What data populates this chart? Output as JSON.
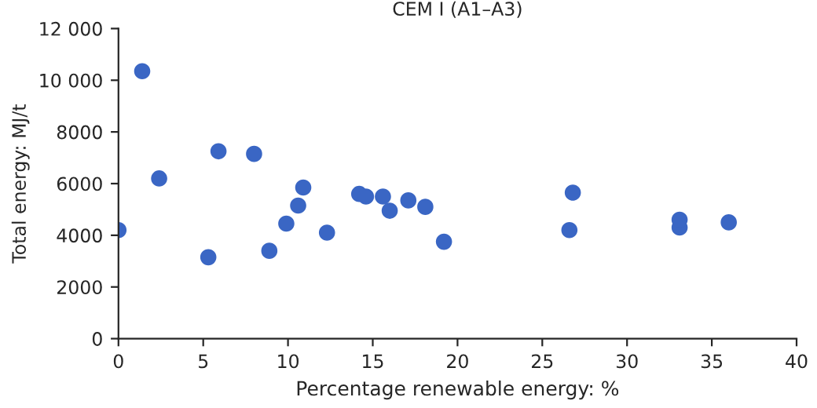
{
  "chart_data": {
    "type": "scatter",
    "title": "CEM I (A1–A3)",
    "xlabel": "Percentage renewable energy: %",
    "ylabel": "Total energy: MJ/t",
    "x": [
      0,
      1.4,
      2.4,
      5.3,
      5.9,
      8.0,
      8.9,
      9.9,
      10.6,
      10.9,
      12.3,
      14.2,
      14.6,
      15.6,
      16.0,
      17.1,
      18.1,
      19.2,
      26.6,
      26.8,
      33.1,
      33.1,
      36.0
    ],
    "series": [
      {
        "color": "#3a66c4",
        "values": [
          4200,
          10350,
          6200,
          3150,
          7250,
          7150,
          3400,
          4450,
          5150,
          5850,
          4100,
          5600,
          5500,
          5500,
          4950,
          5350,
          5100,
          3750,
          4200,
          5650,
          4300,
          4600,
          4500
        ]
      }
    ],
    "xlim": [
      0,
      40
    ],
    "xticks": [
      0,
      5,
      10,
      15,
      20,
      25,
      30,
      35,
      40
    ],
    "ylim": [
      0,
      12000
    ],
    "yticks": [
      0,
      2000,
      4000,
      6000,
      8000,
      {
        "value": 10000,
        "label": "10 000"
      },
      {
        "value": 12000,
        "label": "12 000"
      }
    ],
    "marker": "circle",
    "grid": false
  }
}
